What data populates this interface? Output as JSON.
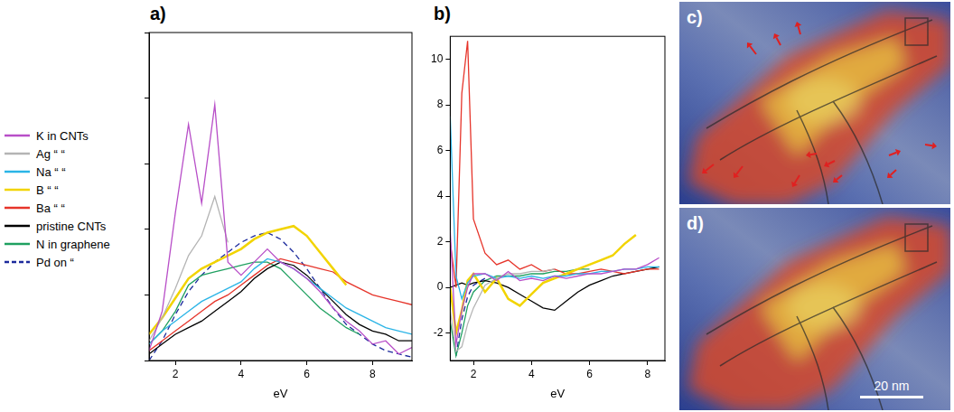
{
  "chart_data": [
    {
      "type": "line",
      "title": "a)",
      "x_label": "eV",
      "xlim": [
        1.2,
        9.2
      ],
      "xticks": [
        2,
        4,
        6,
        8
      ],
      "ylim": [
        0,
        10
      ],
      "yticks": [
        0,
        2,
        4,
        6,
        8,
        10
      ],
      "tick_labels": "x",
      "grid": false,
      "legend": "left",
      "x": [
        1.2,
        1.6,
        2.0,
        2.4,
        2.8,
        3.2,
        3.6,
        4.0,
        4.4,
        4.8,
        5.2,
        5.6,
        6.0,
        6.4,
        6.8,
        7.2,
        7.6,
        8.0,
        8.4,
        8.8,
        9.2
      ],
      "series": [
        {
          "name": "K in CNTs",
          "color": "#b84fc8",
          "line_style": "solid",
          "values": [
            0.3,
            1.5,
            4.5,
            7.2,
            4.8,
            7.8,
            3.0,
            2.6,
            3.0,
            3.4,
            3.0,
            2.8,
            2.5,
            2.1,
            1.6,
            1.2,
            0.9,
            0.5,
            0.6,
            0.2,
            0.4
          ]
        },
        {
          "name": "Ag “ “",
          "color": "#b4b4b4",
          "line_style": "solid",
          "values": [
            0.6,
            1.3,
            2.2,
            3.2,
            3.8,
            5.0,
            3.6,
            null,
            null,
            null,
            null,
            null,
            null,
            null,
            null,
            null,
            null,
            null,
            null,
            null,
            null
          ]
        },
        {
          "name": "Na “ “",
          "color": "#2ab4e6",
          "line_style": "solid",
          "values": [
            0.5,
            0.9,
            1.2,
            1.5,
            1.8,
            2.0,
            2.2,
            2.4,
            2.8,
            3.1,
            3.0,
            2.8,
            2.5,
            2.2,
            1.9,
            1.6,
            1.4,
            1.2,
            1.0,
            0.9,
            0.8
          ]
        },
        {
          "name": "B “ “",
          "color": "#f2d400",
          "line_style": "solid",
          "values": [
            0.8,
            1.3,
            1.9,
            2.5,
            2.8,
            3.0,
            3.2,
            3.4,
            3.7,
            3.9,
            4.0,
            4.1,
            3.8,
            3.3,
            2.8,
            2.3,
            null,
            null,
            null,
            null,
            null
          ]
        },
        {
          "name": "Ba “ “",
          "color": "#e6342a",
          "line_style": "solid",
          "values": [
            0.3,
            0.6,
            0.9,
            1.2,
            1.5,
            1.8,
            2.0,
            2.3,
            2.6,
            2.9,
            3.1,
            3.0,
            2.9,
            2.8,
            2.7,
            2.4,
            2.2,
            2.0,
            1.9,
            1.8,
            1.7
          ]
        },
        {
          "name": "pristine CNTs",
          "color": "#000000",
          "line_style": "solid",
          "values": [
            0.2,
            0.5,
            0.8,
            1.0,
            1.2,
            1.5,
            1.8,
            2.1,
            2.5,
            2.8,
            3.0,
            2.9,
            2.6,
            2.2,
            1.8,
            1.4,
            1.1,
            0.9,
            0.8,
            0.6,
            0.6
          ]
        },
        {
          "name": "N in graphene",
          "color": "#1fa060",
          "line_style": "solid",
          "values": [
            0.5,
            0.9,
            1.5,
            2.3,
            2.6,
            2.7,
            2.8,
            2.9,
            3.0,
            3.0,
            2.8,
            2.4,
            2.0,
            1.6,
            1.3,
            1.0,
            0.8,
            null,
            null,
            null,
            null
          ]
        },
        {
          "name": "Pd on “",
          "color": "#1c2a9c",
          "line_style": "dashed",
          "values": [
            0.0,
            0.6,
            1.4,
            2.1,
            2.6,
            3.0,
            3.3,
            3.6,
            3.8,
            3.9,
            3.7,
            3.3,
            2.8,
            2.2,
            1.6,
            1.1,
            0.8,
            0.5,
            0.3,
            0.2,
            0.1
          ]
        }
      ]
    },
    {
      "type": "line",
      "title": "b)",
      "x_label": "eV",
      "xlim": [
        1.2,
        8.6
      ],
      "xticks": [
        2,
        4,
        6,
        8
      ],
      "ylim": [
        -3.2,
        11
      ],
      "yticks": [
        -2,
        0,
        2,
        4,
        6,
        8,
        10
      ],
      "grid": false,
      "x": [
        1.2,
        1.4,
        1.6,
        1.8,
        2.0,
        2.4,
        2.8,
        3.2,
        3.6,
        4.0,
        4.4,
        4.8,
        5.2,
        5.6,
        6.0,
        6.4,
        6.8,
        7.2,
        7.6,
        8.0,
        8.4
      ],
      "series": [
        {
          "name": "K in CNTs",
          "color": "#b84fc8",
          "line_style": "solid",
          "values": [
            2.5,
            -2.5,
            -1.0,
            0.0,
            0.6,
            0.6,
            0.3,
            0.7,
            0.3,
            0.4,
            0.3,
            0.5,
            0.4,
            0.5,
            0.6,
            0.6,
            0.7,
            0.8,
            0.8,
            1.0,
            1.3
          ]
        },
        {
          "name": "Ag “ “",
          "color": "#b4b4b4",
          "line_style": "solid",
          "values": [
            -1.0,
            -2.8,
            -2.6,
            -1.6,
            -0.9,
            0.1,
            0.4,
            0.6,
            0.6,
            0.7,
            0.7,
            0.8,
            null,
            null,
            null,
            null,
            null,
            null,
            null,
            null,
            null
          ]
        },
        {
          "name": "Na “ “",
          "color": "#2ab4e6",
          "line_style": "solid",
          "values": [
            7.5,
            0.5,
            -0.5,
            0.2,
            0.5,
            0.6,
            0.4,
            0.5,
            0.4,
            0.5,
            0.4,
            0.5,
            0.5,
            0.6,
            0.6,
            0.7,
            0.7,
            0.8,
            0.8,
            0.9,
            0.9
          ]
        },
        {
          "name": "B “ “",
          "color": "#f2d400",
          "line_style": "solid",
          "values": [
            0.0,
            -2.0,
            -1.0,
            0.3,
            0.6,
            -0.2,
            0.4,
            -0.5,
            -0.8,
            -0.3,
            0.2,
            0.4,
            0.6,
            0.8,
            1.0,
            1.2,
            1.4,
            1.9,
            2.3,
            null,
            null
          ]
        },
        {
          "name": "Ba “ “",
          "color": "#e6342a",
          "line_style": "solid",
          "values": [
            2.0,
            0.0,
            8.5,
            10.8,
            3.0,
            1.5,
            1.0,
            1.2,
            0.8,
            1.0,
            0.7,
            0.8,
            0.6,
            0.6,
            0.7,
            0.8,
            0.7,
            0.6,
            0.7,
            0.8,
            0.8
          ]
        },
        {
          "name": "pristine CNTs",
          "color": "#000000",
          "line_style": "solid",
          "values": [
            0.0,
            0.1,
            0.2,
            0.1,
            0.2,
            0.3,
            0.2,
            0.0,
            -0.3,
            -0.6,
            -0.9,
            -1.0,
            -0.6,
            -0.2,
            0.1,
            0.3,
            0.5,
            0.6,
            0.7,
            0.8,
            0.9
          ]
        },
        {
          "name": "N in graphene",
          "color": "#1fa060",
          "line_style": "solid",
          "values": [
            -1.5,
            -3.0,
            -2.0,
            -0.8,
            -0.2,
            0.3,
            0.5,
            0.5,
            0.5,
            0.6,
            0.6,
            0.7,
            0.7,
            0.8,
            0.8,
            null,
            null,
            null,
            null,
            null,
            null
          ]
        },
        {
          "name": "Pd on “",
          "color": "#1c2a9c",
          "line_style": "dashed",
          "values": [
            null,
            -3.0,
            -1.4,
            -0.4,
            0.1,
            0.4,
            null,
            null,
            null,
            null,
            null,
            null,
            null,
            null,
            null,
            null,
            null,
            null,
            null,
            null,
            null
          ]
        }
      ]
    }
  ],
  "images": [
    {
      "label": "c)"
    },
    {
      "label": "d)",
      "scale_bar": "20 nm"
    }
  ]
}
